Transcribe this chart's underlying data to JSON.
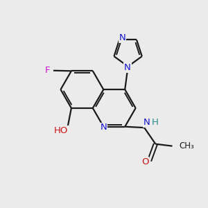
{
  "background_color": "#ebebeb",
  "bond_color": "#1a1a1a",
  "N_color": "#1414cc",
  "O_color": "#cc1414",
  "F_color": "#cc14cc",
  "H_color": "#2a8a8a",
  "figsize": [
    3.0,
    3.0
  ],
  "dpi": 100,
  "xlim": [
    0,
    10
  ],
  "ylim": [
    0,
    10
  ]
}
